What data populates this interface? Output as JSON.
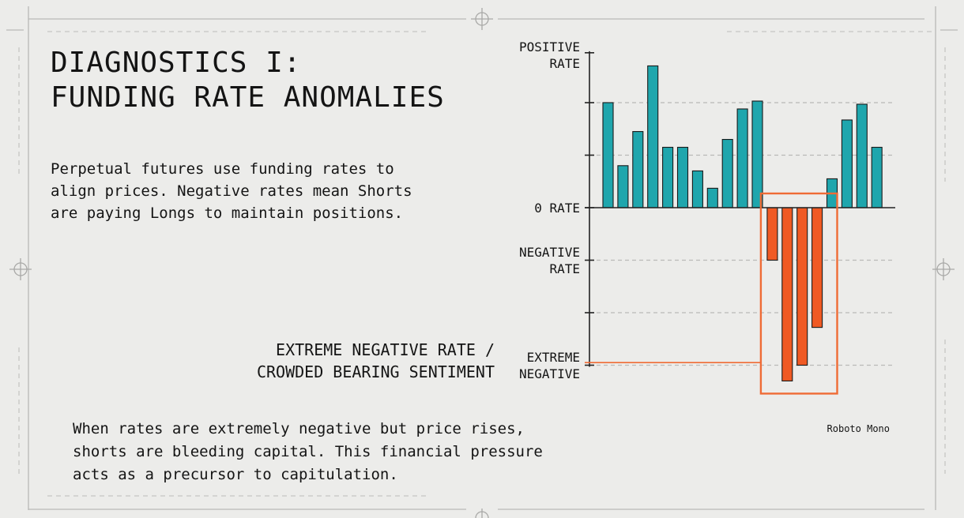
{
  "slide": {
    "title_lines": [
      "DIAGNOSTICS I:",
      "FUNDING RATE ANOMALIES"
    ],
    "intro": "Perpetual futures use funding rates to align prices. Negative rates mean Shorts are paying Longs to maintain positions.",
    "callout_lines": [
      "EXTREME NEGATIVE RATE /",
      "CROWDED BEARING SENTIMENT"
    ],
    "conclusion": "When rates are extremely negative but price rises, shorts are bleeding capital. This financial pressure acts as a precursor to capitulation.",
    "font_note": "Roboto Mono"
  },
  "chart_data": {
    "type": "bar",
    "title": "",
    "xlabel": "",
    "ylabel": "",
    "ylim": [
      -3.3,
      2.95
    ],
    "y_levels": [
      {
        "value": 2.7,
        "label_lines": [
          "POSITIVE",
          "RATE"
        ]
      },
      {
        "value": 0,
        "label_lines": [
          "0 RATE"
        ]
      },
      {
        "value": -1,
        "label_lines": [
          "NEGATIVE",
          "RATE"
        ]
      },
      {
        "value": -3,
        "label_lines": [
          "EXTREME",
          "NEGATIVE"
        ]
      }
    ],
    "gridlines": [
      2,
      1,
      -1,
      -2,
      -3
    ],
    "grid": true,
    "values": [
      2.0,
      0.8,
      1.45,
      2.7,
      1.15,
      1.15,
      0.7,
      0.37,
      1.3,
      1.88,
      2.03,
      -1.0,
      -3.3,
      -3.0,
      -2.28,
      0.55,
      1.67,
      1.97,
      1.15
    ],
    "positive_color": "#1fa6ad",
    "negative_color": "#f05a24",
    "highlight": {
      "from_index": 11,
      "to_index": 14,
      "color": "#ef6b35",
      "annotation_y": -2.95
    }
  }
}
